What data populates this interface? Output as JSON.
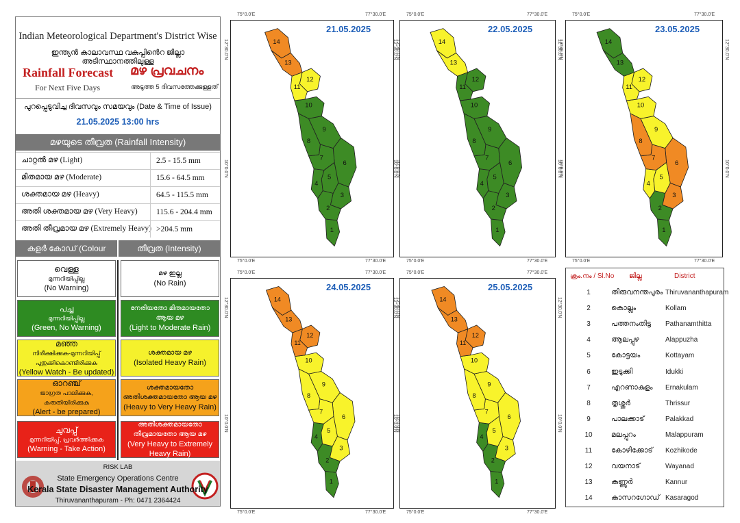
{
  "header": {
    "title_en": "Indian Meteorological Department's District Wise",
    "title_ml": "ഇന്ത്യൻ കാലാവസ്ഥ വകുപ്പിൻെറ ജില്ലാ അടിസ്ഥാനത്തിലുള്ള",
    "rainfall_forecast": "Rainfall Forecast",
    "mazha_pravachanam": "മഴ പ്രവചനം",
    "next_five_days": "For Next Five Days",
    "next_five_days_ml": "അടുത്ത 5 ദിവസത്തേക്കുള്ളത്"
  },
  "issue": {
    "label": "പുറപ്പെടുവിച്ച ദിവസവും സമയവും (Date & Time of Issue)",
    "value": "21.05.2025 13:00 hrs"
  },
  "intensity": {
    "title": "മഴയുടെ തീവ്രത (Rainfall Intensity)",
    "rows": [
      {
        "label": "ചാറ്റൽ മഴ (Light)",
        "range": "2.5 - 15.5 mm"
      },
      {
        "label": "മിതമായ മഴ (Moderate)",
        "range": "15.6 - 64.5 mm"
      },
      {
        "label": "ശക്തമായ മഴ (Heavy)",
        "range": "64.5 - 115.5 mm"
      },
      {
        "label": "അതി ശക്തമായ മഴ (Very Heavy)",
        "range": "115.6 - 204.4 mm"
      },
      {
        "label": "അതി തീവ്രമായ മഴ (Extremely Heavy)",
        "range": ">204.5 mm"
      }
    ]
  },
  "colour_code": {
    "header_left": "കളർ കോഡ് (Colour Code)",
    "header_right": "തീവ്രത (Intensity)",
    "rows": [
      {
        "left_ml": "വെള്ള",
        "left_ml2": "മുന്നറിയിപ്പില്ല",
        "left_en": "(No Warning)",
        "right_ml": "മഴ ഇല്ല",
        "right_en": "(No Rain)",
        "bg": "#ffffff",
        "fg": "#111111"
      },
      {
        "left_ml": "പച്ച",
        "left_ml2": "മുന്നറിയിപ്പില്ല",
        "left_en": "(Green, No Warning)",
        "right_ml": "നേരിയതോ മിതമായതോ ആയ മഴ",
        "right_en": "(Light to Moderate Rain)",
        "bg": "#2e8b22",
        "fg": "#ffffff"
      },
      {
        "left_ml": "മഞ്ഞ",
        "left_ml2": "നിരീക്ഷിക്കുക-മുന്നറിയിപ്പ് പുതുക്കികൊണ്ടിരിക്കുക",
        "left_en": "(Yellow Watch - Be updated)",
        "right_ml": "ശക്തമായ മഴ",
        "right_en": "(Isolated Heavy Rain)",
        "bg": "#f5f12c",
        "fg": "#111111"
      },
      {
        "left_ml": "ഓറഞ്ച്",
        "left_ml2": "ജാഗ്രത പാലിക്കുക, കരുതിയിരിക്കുക",
        "left_en": "(Alert - be prepared)",
        "right_ml": "ശക്തമായതോ അതിശക്തമായതോ ആയ മഴ",
        "right_en": "(Heavy to Very Heavy Rain)",
        "bg": "#f5a21b",
        "fg": "#111111"
      },
      {
        "left_ml": "ചുവപ്പ്",
        "left_ml2": "മുന്നറിയിപ്പ്, പ്രവർത്തിക്കുക",
        "left_en": "(Warning - Take Action)",
        "right_ml": "അതിശക്തമായതോ തീവ്രമായതോ ആയ മഴ",
        "right_en": "(Very Heavy to Extremely Heavy Rain)",
        "bg": "#e82219",
        "fg": "#ffffff"
      }
    ]
  },
  "footer": {
    "risk_lab": "RISK LAB",
    "seoc": "State Emergency Operations Centre",
    "ksdma": "Kerala State Disaster Management Authority",
    "address": "Thiruvananthapuram - Ph: 0471 2364424"
  },
  "coords": {
    "lon1": "75°0.0'E",
    "lon2": "77°30.0'E",
    "lat1": "12°30.0'N",
    "lat2": "10°0.0'N",
    "lat3": "12°30.0'N"
  },
  "colors": {
    "green": "#3d8b25",
    "yellow": "#f8f32b",
    "orange": "#f08a24",
    "white": "#ffffff"
  },
  "maps": [
    {
      "date": "21.05.2025",
      "districts": {
        "1": "green",
        "2": "green",
        "3": "green",
        "4": "green",
        "5": "green",
        "6": "green",
        "7": "green",
        "8": "green",
        "9": "green",
        "10": "green",
        "11": "yellow",
        "12": "yellow",
        "13": "orange",
        "14": "orange"
      }
    },
    {
      "date": "22.05.2025",
      "districts": {
        "1": "green",
        "2": "green",
        "3": "green",
        "4": "green",
        "5": "green",
        "6": "green",
        "7": "green",
        "8": "green",
        "9": "green",
        "10": "green",
        "11": "green",
        "12": "green",
        "13": "yellow",
        "14": "yellow"
      }
    },
    {
      "date": "23.05.2025",
      "districts": {
        "1": "green",
        "2": "green",
        "3": "orange",
        "4": "yellow",
        "5": "yellow",
        "6": "orange",
        "7": "orange",
        "8": "orange",
        "9": "yellow",
        "10": "yellow",
        "11": "yellow",
        "12": "yellow",
        "13": "green",
        "14": "green"
      }
    },
    {
      "date": "24.05.2025",
      "districts": {
        "1": "green",
        "2": "green",
        "3": "yellow",
        "4": "green",
        "5": "yellow",
        "6": "yellow",
        "7": "yellow",
        "8": "yellow",
        "9": "yellow",
        "10": "yellow",
        "11": "orange",
        "12": "orange",
        "13": "orange",
        "14": "orange"
      }
    },
    {
      "date": "25.05.2025",
      "districts": {
        "1": "green",
        "2": "green",
        "3": "yellow",
        "4": "green",
        "5": "yellow",
        "6": "yellow",
        "7": "yellow",
        "8": "yellow",
        "9": "yellow",
        "10": "yellow",
        "11": "orange",
        "12": "orange",
        "13": "orange",
        "14": "orange"
      }
    }
  ],
  "legend": {
    "header_no": "ക്രം.നം / Sl.No",
    "header_ml": "ജില്ല",
    "header_en": "District",
    "rows": [
      {
        "n": "1",
        "ml": "തിരുവനന്തപുരം",
        "en": "Thiruvananthapuram"
      },
      {
        "n": "2",
        "ml": "കൊല്ലം",
        "en": "Kollam"
      },
      {
        "n": "3",
        "ml": "പത്തനംതിട്ട",
        "en": "Pathanamthitta"
      },
      {
        "n": "4",
        "ml": "ആലപ്പുഴ",
        "en": "Alappuzha"
      },
      {
        "n": "5",
        "ml": "കോട്ടയം",
        "en": "Kottayam"
      },
      {
        "n": "6",
        "ml": "ഇടുക്കി",
        "en": "Idukki"
      },
      {
        "n": "7",
        "ml": "എറണാകുളം",
        "en": "Ernakulam"
      },
      {
        "n": "8",
        "ml": "തൃശ്ശൂർ",
        "en": "Thrissur"
      },
      {
        "n": "9",
        "ml": "പാലക്കാട്",
        "en": "Palakkad"
      },
      {
        "n": "10",
        "ml": "മലപ്പുറം",
        "en": "Malappuram"
      },
      {
        "n": "11",
        "ml": "കോഴിക്കോട്",
        "en": "Kozhikode"
      },
      {
        "n": "12",
        "ml": "വയനാട്",
        "en": "Wayanad"
      },
      {
        "n": "13",
        "ml": "കണ്ണൂർ",
        "en": "Kannur"
      },
      {
        "n": "14",
        "ml": "കാസറഗോഡ്",
        "en": "Kasaragod"
      }
    ]
  }
}
